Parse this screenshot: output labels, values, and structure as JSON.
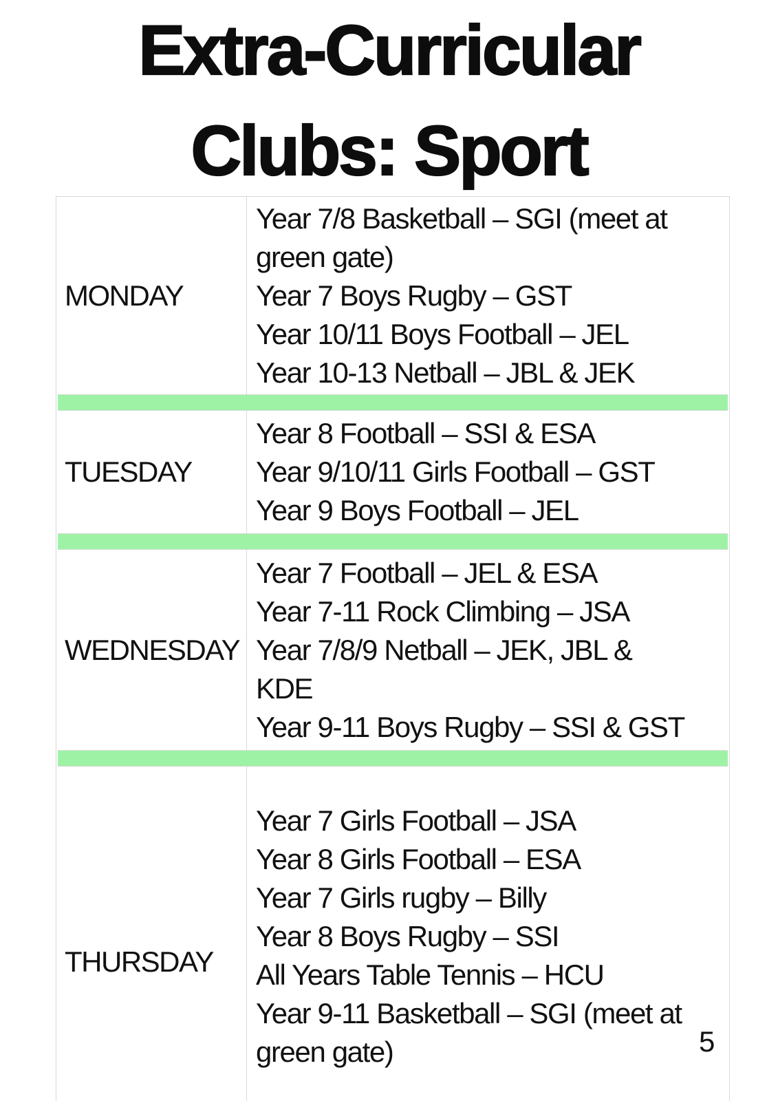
{
  "page": {
    "title_line1": "Extra-Curricular",
    "title_line2": "Clubs: Sport",
    "page_number": "5"
  },
  "colors": {
    "divider_green": "#9ef2a6",
    "table_border": "#d8d8d8",
    "text": "#111111"
  },
  "schedule": {
    "rows": [
      {
        "day": "MONDAY",
        "lines": [
          "Year 7/8 Basketball – SGI (meet at",
          "green gate)",
          "Year 7 Boys Rugby – GST",
          "Year 10/11 Boys Football – JEL",
          "Year 10-13 Netball – JBL & JEK"
        ]
      },
      {
        "day": "TUESDAY",
        "lines": [
          "Year 8 Football – SSI & ESA",
          "Year 9/10/11 Girls Football – GST",
          "Year 9 Boys Football – JEL"
        ]
      },
      {
        "day": "WEDNESDAY",
        "lines": [
          "Year 7 Football – JEL & ESA",
          "Year 7-11 Rock Climbing – JSA",
          "Year 7/8/9 Netball – JEK, JBL &",
          "KDE",
          "Year 9-11 Boys Rugby – SSI & GST"
        ]
      },
      {
        "day": "THURSDAY",
        "lines": [
          "Year 7 Girls Football – JSA",
          "Year 8 Girls Football – ESA",
          "Year 7 Girls rugby – Billy",
          "Year 8 Boys Rugby – SSI",
          "All Years Table Tennis – HCU",
          "Year 9-11 Basketball – SGI (meet at",
          "green gate)"
        ]
      }
    ]
  }
}
